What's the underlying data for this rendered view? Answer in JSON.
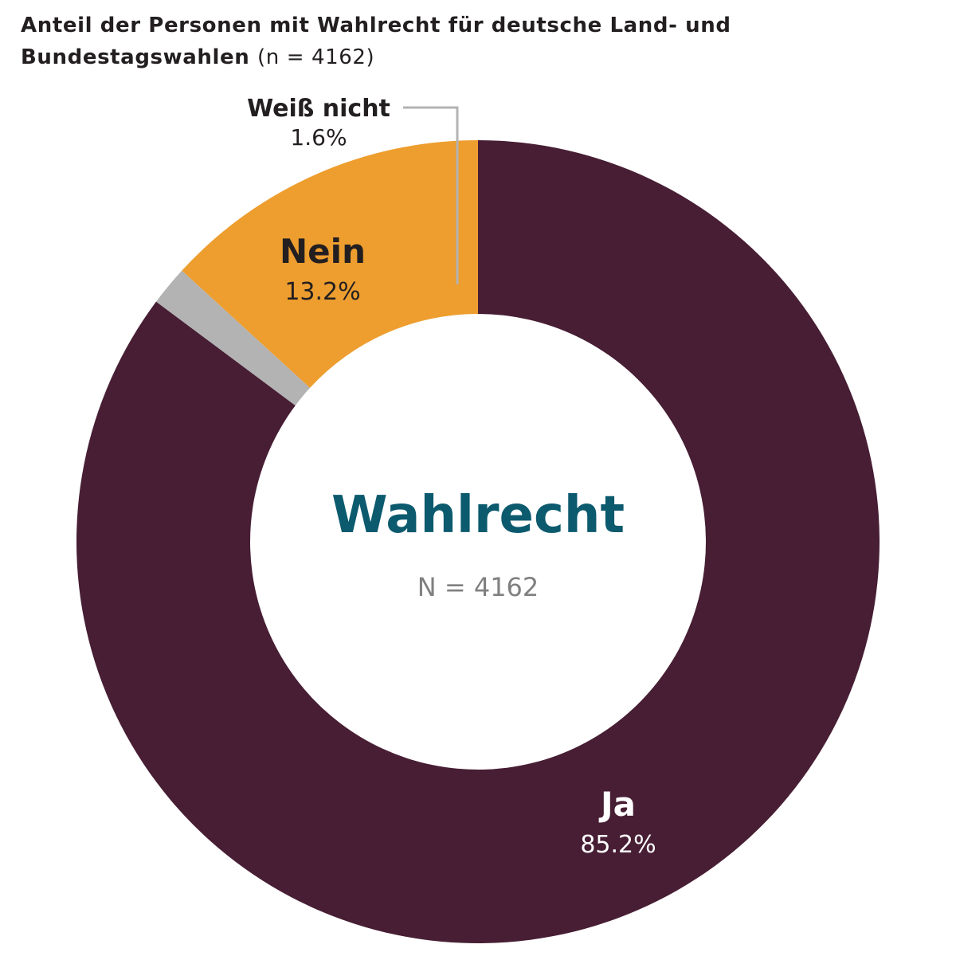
{
  "chart_data": {
    "type": "pie",
    "variant": "donut",
    "title": "Anteil der Personen mit Wahlrecht für deutsche Land- und Bundestagswahlen",
    "title_n": "(n = 4162)",
    "center_label": "Wahlrecht",
    "center_sublabel": "N = 4162",
    "unit": "%",
    "slices": [
      {
        "label": "Ja",
        "value": 85.2,
        "value_label": "85.2%",
        "color": "#471e34"
      },
      {
        "label": "Weiß nicht",
        "value": 1.6,
        "value_label": "1.6%",
        "color": "#b3b3b3"
      },
      {
        "label": "Nein",
        "value": 13.2,
        "value_label": "13.2%",
        "color": "#ed9e2f"
      }
    ]
  },
  "colors": {
    "center_label": "#0c5a6e",
    "center_sublabel": "#808080",
    "leader_line": "#b3b3b3",
    "dark_text": "#231f20",
    "light_text": "#ffffff",
    "background": "#ffffff"
  }
}
